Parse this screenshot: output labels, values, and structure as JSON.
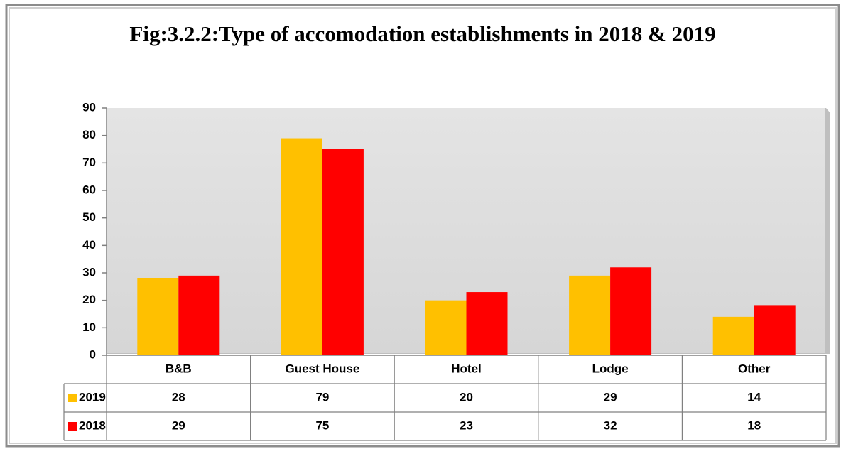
{
  "chart_data": {
    "type": "bar",
    "title": "Fig:3.2.2:Type of accomodation establishments in 2018 & 2019",
    "categories": [
      "B&B",
      "Guest House",
      "Hotel",
      "Lodge",
      "Other"
    ],
    "series": [
      {
        "name": "2019",
        "color": "#FFC000",
        "values": [
          28,
          79,
          20,
          29,
          14
        ]
      },
      {
        "name": "2018",
        "color": "#FF0000",
        "values": [
          29,
          75,
          23,
          32,
          18
        ]
      }
    ],
    "ylim": [
      0,
      90
    ],
    "yticks": [
      0,
      10,
      20,
      30,
      40,
      50,
      60,
      70,
      80,
      90
    ],
    "grid": false
  }
}
